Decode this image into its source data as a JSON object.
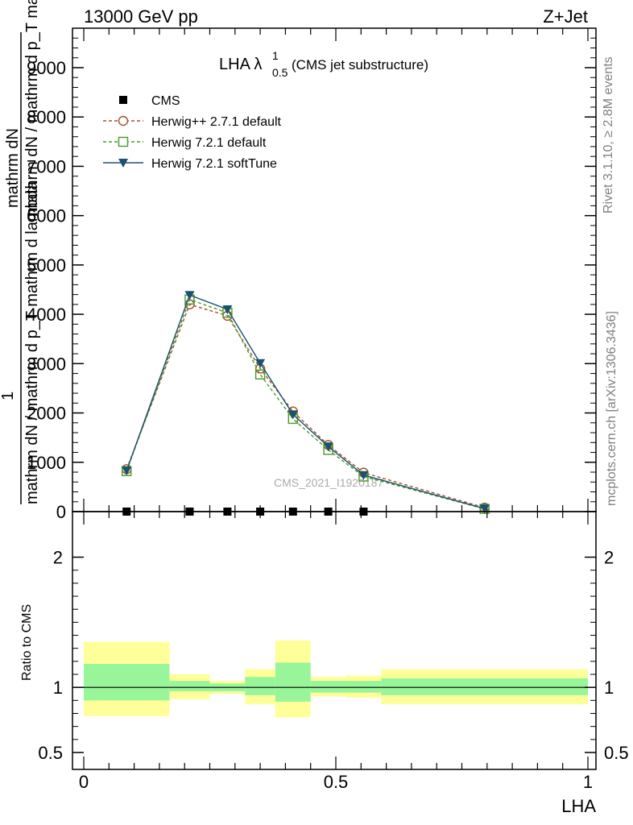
{
  "header": {
    "left": "13000 GeV pp",
    "right": "Z+Jet"
  },
  "side_text": {
    "rivet": "Rivet 3.1.10, ≥ 2.8M events",
    "mcplots": "mcplots.cern.ch [arXiv:1306.3436]"
  },
  "watermark": "CMS_2021_I1920187",
  "chart_data": [
    {
      "type": "line",
      "title_main": "LHA λ",
      "title_sup": "1",
      "title_sub": "0.5",
      "title_suffix": " (CMS jet substructure)",
      "ylabel_main": "mathrm dN",
      "ylabel_lower": "mathrm dN / mathrm d p_T mathrm d lambda",
      "ylabel_prefix": "1",
      "ylabel_upper": "mathrm dN / mathrm d p_T mathrm d lambda",
      "xlim": [
        0,
        1
      ],
      "ylim": [
        0,
        9800
      ],
      "yticks": [
        0,
        1000,
        2000,
        3000,
        4000,
        5000,
        6000,
        7000,
        8000,
        9000
      ],
      "ytick_labels": [
        "0",
        "1000",
        "2000",
        "3000",
        "4000",
        "5000",
        "6000",
        "7000",
        "8000",
        "9000"
      ],
      "legend_position": "top-left",
      "series": [
        {
          "name": "CMS",
          "color": "#000000",
          "marker": "square-filled",
          "line": "none",
          "x": [
            0.085,
            0.21,
            0.285,
            0.35,
            0.415,
            0.485,
            0.555
          ],
          "y": [
            0,
            0,
            0,
            0,
            0,
            0,
            0
          ],
          "xerr": [
            0.085,
            0.04,
            0.035,
            0.03,
            0.035,
            0.035,
            0.035
          ]
        },
        {
          "name": "Herwig++ 2.7.1 default",
          "color": "#a0522d",
          "marker": "circle-open",
          "line": "dashed",
          "x": [
            0.085,
            0.21,
            0.285,
            0.35,
            0.415,
            0.485,
            0.555,
            0.795
          ],
          "y": [
            860,
            4200,
            3970,
            2900,
            2030,
            1350,
            790,
            80
          ]
        },
        {
          "name": "Herwig 7.2.1 default",
          "color": "#4c9a2a",
          "marker": "square-open",
          "line": "dashed",
          "x": [
            0.085,
            0.21,
            0.285,
            0.35,
            0.415,
            0.485,
            0.555,
            0.795
          ],
          "y": [
            820,
            4300,
            4030,
            2780,
            1880,
            1250,
            710,
            55
          ]
        },
        {
          "name": "Herwig 7.2.1 softTune",
          "color": "#1a5170",
          "marker": "triangle-down-filled",
          "line": "solid",
          "x": [
            0.085,
            0.21,
            0.285,
            0.35,
            0.415,
            0.485,
            0.555,
            0.795
          ],
          "y": [
            830,
            4390,
            4100,
            3010,
            1970,
            1320,
            740,
            60
          ]
        }
      ]
    },
    {
      "type": "area",
      "ylabel": "Ratio to CMS",
      "xlabel": "LHA",
      "xlim": [
        0,
        1
      ],
      "ylim": [
        0.37,
        2.35
      ],
      "xticks": [
        0,
        0.5,
        1
      ],
      "xtick_labels": [
        "0",
        "0.5",
        "1"
      ],
      "yticks": [
        0.5,
        1,
        2
      ],
      "ytick_labels": [
        "0.5",
        "1",
        "2"
      ],
      "reference_line": 1,
      "inner_band_color": "#99f599",
      "outer_band_color": "#ffff99",
      "bins": [
        {
          "x0": 0.0,
          "x1": 0.17,
          "inner": [
            0.9,
            1.18
          ],
          "outer": [
            0.78,
            1.35
          ]
        },
        {
          "x0": 0.17,
          "x1": 0.25,
          "inner": [
            0.97,
            1.05
          ],
          "outer": [
            0.91,
            1.1
          ]
        },
        {
          "x0": 0.25,
          "x1": 0.32,
          "inner": [
            0.97,
            1.03
          ],
          "outer": [
            0.95,
            1.05
          ]
        },
        {
          "x0": 0.32,
          "x1": 0.38,
          "inner": [
            0.94,
            1.08
          ],
          "outer": [
            0.87,
            1.14
          ]
        },
        {
          "x0": 0.38,
          "x1": 0.45,
          "inner": [
            0.89,
            1.19
          ],
          "outer": [
            0.77,
            1.36
          ]
        },
        {
          "x0": 0.45,
          "x1": 0.52,
          "inner": [
            0.96,
            1.05
          ],
          "outer": [
            0.93,
            1.08
          ]
        },
        {
          "x0": 0.52,
          "x1": 0.59,
          "inner": [
            0.96,
            1.05
          ],
          "outer": [
            0.92,
            1.09
          ]
        },
        {
          "x0": 0.59,
          "x1": 1.0,
          "inner": [
            0.94,
            1.07
          ],
          "outer": [
            0.87,
            1.14
          ]
        }
      ]
    }
  ]
}
